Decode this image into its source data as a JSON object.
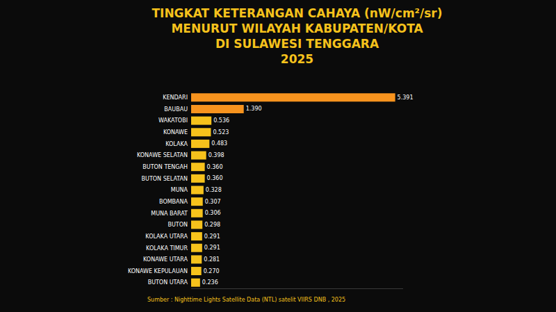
{
  "chart_data": {
    "type": "bar",
    "orientation": "horizontal",
    "title": "TINGKAT KETERANGAN CAHAYA (nW/cm²/sr)\nMENURUT WILAYAH KABUPATEN/KOTA\nDI SULAWESI TENGGARA\n2025",
    "categories": [
      "KENDARI",
      "BAUBAU",
      "WAKATOBI",
      "KONAWE",
      "KOLAKA",
      "KONAWE SELATAN",
      "BUTON TENGAH",
      "BUTON SELATAN",
      "MUNA",
      "BOMBANA",
      "MUNA BARAT",
      "BUTON",
      "KOLAKA UTARA",
      "KOLAKA TIMUR",
      "KONAWE UTARA",
      "KONAWE KEPULAUAN",
      "BUTON UTARA"
    ],
    "values": [
      5.391,
      1.39,
      0.536,
      0.523,
      0.483,
      0.398,
      0.36,
      0.36,
      0.328,
      0.307,
      0.306,
      0.298,
      0.291,
      0.291,
      0.281,
      0.27,
      0.236
    ],
    "value_labels": [
      "5.391",
      "1.390",
      "0.536",
      "0.523",
      "0.483",
      "0.398",
      "0.360",
      "0.360",
      "0.328",
      "0.307",
      "0.306",
      "0.298",
      "0.291",
      "0.291",
      "0.281",
      "0.270",
      "0.236"
    ],
    "colors": [
      "#f7931e",
      "#f7931e",
      "#f6c21c",
      "#f6c21c",
      "#f6c21c",
      "#f6c21c",
      "#f6c21c",
      "#f6c21c",
      "#f6c21c",
      "#f6c21c",
      "#f6c21c",
      "#f6c21c",
      "#f6c21c",
      "#f6c21c",
      "#f6c21c",
      "#f6c21c",
      "#f6c21c"
    ],
    "xlim": [
      0,
      5.6
    ],
    "data_labels": true,
    "tick_labels": "y",
    "grid": false,
    "source": "Sumber : Nighttime Lights Satellite Data (NTL) satelit VIIRS DNB , 2025"
  }
}
